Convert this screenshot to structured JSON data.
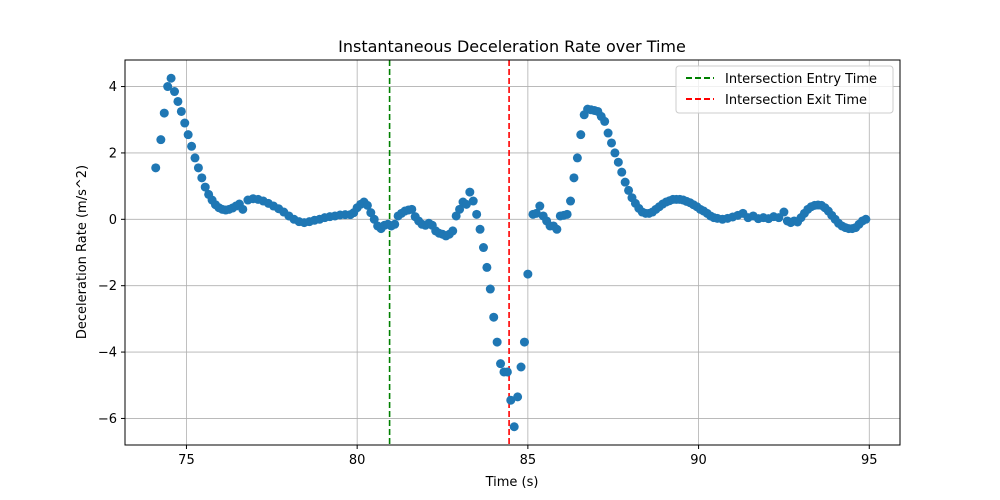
{
  "chart_data": {
    "type": "scatter",
    "title": "Instantaneous Deceleration Rate over Time",
    "xlabel": "Time (s)",
    "ylabel": "Deceleration Rate (m/s^2)",
    "xlim": [
      73.2,
      95.9
    ],
    "ylim": [
      -6.8,
      4.8
    ],
    "xticks": [
      75,
      80,
      85,
      90,
      95
    ],
    "xtick_labels": [
      "75",
      "80",
      "85",
      "90",
      "95"
    ],
    "yticks": [
      4,
      2,
      0,
      -2,
      -4,
      -6
    ],
    "ytick_labels": [
      "4",
      "2",
      "0",
      "−2",
      "−4",
      "−6"
    ],
    "grid": true,
    "legend_position": "top-right",
    "marker_color": "#1f77b4",
    "vlines": [
      {
        "label": "Intersection Entry Time",
        "x": 80.95,
        "color": "#008000",
        "style": "dashed"
      },
      {
        "label": "Intersection Exit Time",
        "x": 84.45,
        "color": "#ff0000",
        "style": "dashed"
      }
    ],
    "points": [
      [
        74.1,
        1.55
      ],
      [
        74.25,
        2.4
      ],
      [
        74.35,
        3.2
      ],
      [
        74.45,
        4.0
      ],
      [
        74.55,
        4.25
      ],
      [
        74.65,
        3.85
      ],
      [
        74.75,
        3.55
      ],
      [
        74.85,
        3.25
      ],
      [
        74.95,
        2.9
      ],
      [
        75.05,
        2.55
      ],
      [
        75.15,
        2.2
      ],
      [
        75.25,
        1.85
      ],
      [
        75.35,
        1.55
      ],
      [
        75.45,
        1.25
      ],
      [
        75.55,
        0.97
      ],
      [
        75.65,
        0.75
      ],
      [
        75.75,
        0.58
      ],
      [
        75.85,
        0.44
      ],
      [
        75.95,
        0.35
      ],
      [
        76.05,
        0.3
      ],
      [
        76.15,
        0.28
      ],
      [
        76.25,
        0.3
      ],
      [
        76.35,
        0.34
      ],
      [
        76.45,
        0.4
      ],
      [
        76.55,
        0.46
      ],
      [
        76.65,
        0.3
      ],
      [
        76.8,
        0.58
      ],
      [
        76.95,
        0.62
      ],
      [
        77.1,
        0.6
      ],
      [
        77.25,
        0.55
      ],
      [
        77.4,
        0.48
      ],
      [
        77.55,
        0.4
      ],
      [
        77.7,
        0.32
      ],
      [
        77.85,
        0.22
      ],
      [
        78.0,
        0.1
      ],
      [
        78.15,
        0.0
      ],
      [
        78.3,
        -0.07
      ],
      [
        78.45,
        -0.1
      ],
      [
        78.6,
        -0.07
      ],
      [
        78.75,
        -0.03
      ],
      [
        78.9,
        0.0
      ],
      [
        79.05,
        0.05
      ],
      [
        79.2,
        0.08
      ],
      [
        79.35,
        0.1
      ],
      [
        79.5,
        0.13
      ],
      [
        79.65,
        0.14
      ],
      [
        79.8,
        0.14
      ],
      [
        79.9,
        0.2
      ],
      [
        80.0,
        0.35
      ],
      [
        80.1,
        0.45
      ],
      [
        80.2,
        0.52
      ],
      [
        80.3,
        0.42
      ],
      [
        80.4,
        0.2
      ],
      [
        80.5,
        0.0
      ],
      [
        80.6,
        -0.2
      ],
      [
        80.7,
        -0.28
      ],
      [
        80.8,
        -0.18
      ],
      [
        80.9,
        -0.15
      ],
      [
        81.0,
        -0.2
      ],
      [
        81.1,
        -0.15
      ],
      [
        81.2,
        0.1
      ],
      [
        81.3,
        0.18
      ],
      [
        81.4,
        0.25
      ],
      [
        81.5,
        0.28
      ],
      [
        81.6,
        0.3
      ],
      [
        81.7,
        0.08
      ],
      [
        81.8,
        -0.05
      ],
      [
        81.9,
        -0.15
      ],
      [
        82.0,
        -0.18
      ],
      [
        82.1,
        -0.12
      ],
      [
        82.2,
        -0.18
      ],
      [
        82.3,
        -0.35
      ],
      [
        82.4,
        -0.42
      ],
      [
        82.5,
        -0.45
      ],
      [
        82.6,
        -0.5
      ],
      [
        82.7,
        -0.45
      ],
      [
        82.8,
        -0.35
      ],
      [
        82.9,
        0.1
      ],
      [
        83.0,
        0.3
      ],
      [
        83.1,
        0.52
      ],
      [
        83.2,
        0.45
      ],
      [
        83.3,
        0.82
      ],
      [
        83.4,
        0.55
      ],
      [
        83.5,
        0.15
      ],
      [
        83.6,
        -0.3
      ],
      [
        83.7,
        -0.85
      ],
      [
        83.8,
        -1.45
      ],
      [
        83.9,
        -2.1
      ],
      [
        84.0,
        -2.95
      ],
      [
        84.1,
        -3.7
      ],
      [
        84.2,
        -4.35
      ],
      [
        84.3,
        -4.6
      ],
      [
        84.4,
        -4.6
      ],
      [
        84.5,
        -5.45
      ],
      [
        84.6,
        -6.25
      ],
      [
        84.7,
        -5.35
      ],
      [
        84.8,
        -4.45
      ],
      [
        84.9,
        -3.7
      ],
      [
        85.0,
        -1.65
      ],
      [
        85.15,
        0.15
      ],
      [
        85.25,
        0.18
      ],
      [
        85.35,
        0.4
      ],
      [
        85.45,
        0.1
      ],
      [
        85.55,
        -0.05
      ],
      [
        85.65,
        -0.2
      ],
      [
        85.75,
        -0.2
      ],
      [
        85.85,
        -0.3
      ],
      [
        85.95,
        0.1
      ],
      [
        86.05,
        0.12
      ],
      [
        86.15,
        0.15
      ],
      [
        86.25,
        0.55
      ],
      [
        86.35,
        1.25
      ],
      [
        86.45,
        1.85
      ],
      [
        86.55,
        2.55
      ],
      [
        86.65,
        3.15
      ],
      [
        86.75,
        3.32
      ],
      [
        86.85,
        3.3
      ],
      [
        86.95,
        3.28
      ],
      [
        87.05,
        3.25
      ],
      [
        87.15,
        3.1
      ],
      [
        87.25,
        2.95
      ],
      [
        87.35,
        2.6
      ],
      [
        87.45,
        2.3
      ],
      [
        87.55,
        2.0
      ],
      [
        87.65,
        1.72
      ],
      [
        87.75,
        1.42
      ],
      [
        87.85,
        1.12
      ],
      [
        87.95,
        0.87
      ],
      [
        88.05,
        0.65
      ],
      [
        88.15,
        0.48
      ],
      [
        88.25,
        0.33
      ],
      [
        88.35,
        0.22
      ],
      [
        88.45,
        0.18
      ],
      [
        88.55,
        0.18
      ],
      [
        88.65,
        0.22
      ],
      [
        88.75,
        0.3
      ],
      [
        88.85,
        0.38
      ],
      [
        88.95,
        0.46
      ],
      [
        89.05,
        0.52
      ],
      [
        89.15,
        0.56
      ],
      [
        89.25,
        0.6
      ],
      [
        89.35,
        0.6
      ],
      [
        89.45,
        0.6
      ],
      [
        89.55,
        0.58
      ],
      [
        89.65,
        0.54
      ],
      [
        89.75,
        0.5
      ],
      [
        89.85,
        0.44
      ],
      [
        89.95,
        0.38
      ],
      [
        90.05,
        0.3
      ],
      [
        90.15,
        0.25
      ],
      [
        90.25,
        0.18
      ],
      [
        90.35,
        0.1
      ],
      [
        90.45,
        0.05
      ],
      [
        90.55,
        0.03
      ],
      [
        90.7,
        0.0
      ],
      [
        90.85,
        0.03
      ],
      [
        91.0,
        0.07
      ],
      [
        91.15,
        0.12
      ],
      [
        91.3,
        0.18
      ],
      [
        91.45,
        0.05
      ],
      [
        91.6,
        0.1
      ],
      [
        91.75,
        0.02
      ],
      [
        91.9,
        0.05
      ],
      [
        92.05,
        0.02
      ],
      [
        92.2,
        0.08
      ],
      [
        92.35,
        0.05
      ],
      [
        92.5,
        0.22
      ],
      [
        92.6,
        -0.05
      ],
      [
        92.7,
        -0.1
      ],
      [
        92.8,
        -0.05
      ],
      [
        92.9,
        -0.08
      ],
      [
        93.0,
        0.05
      ],
      [
        93.1,
        0.18
      ],
      [
        93.2,
        0.3
      ],
      [
        93.3,
        0.38
      ],
      [
        93.4,
        0.42
      ],
      [
        93.5,
        0.43
      ],
      [
        93.6,
        0.42
      ],
      [
        93.7,
        0.35
      ],
      [
        93.8,
        0.25
      ],
      [
        93.9,
        0.12
      ],
      [
        94.0,
        0.0
      ],
      [
        94.1,
        -0.12
      ],
      [
        94.2,
        -0.2
      ],
      [
        94.3,
        -0.25
      ],
      [
        94.4,
        -0.28
      ],
      [
        94.5,
        -0.28
      ],
      [
        94.6,
        -0.25
      ],
      [
        94.7,
        -0.15
      ],
      [
        94.8,
        -0.05
      ],
      [
        94.9,
        0.0
      ]
    ]
  }
}
